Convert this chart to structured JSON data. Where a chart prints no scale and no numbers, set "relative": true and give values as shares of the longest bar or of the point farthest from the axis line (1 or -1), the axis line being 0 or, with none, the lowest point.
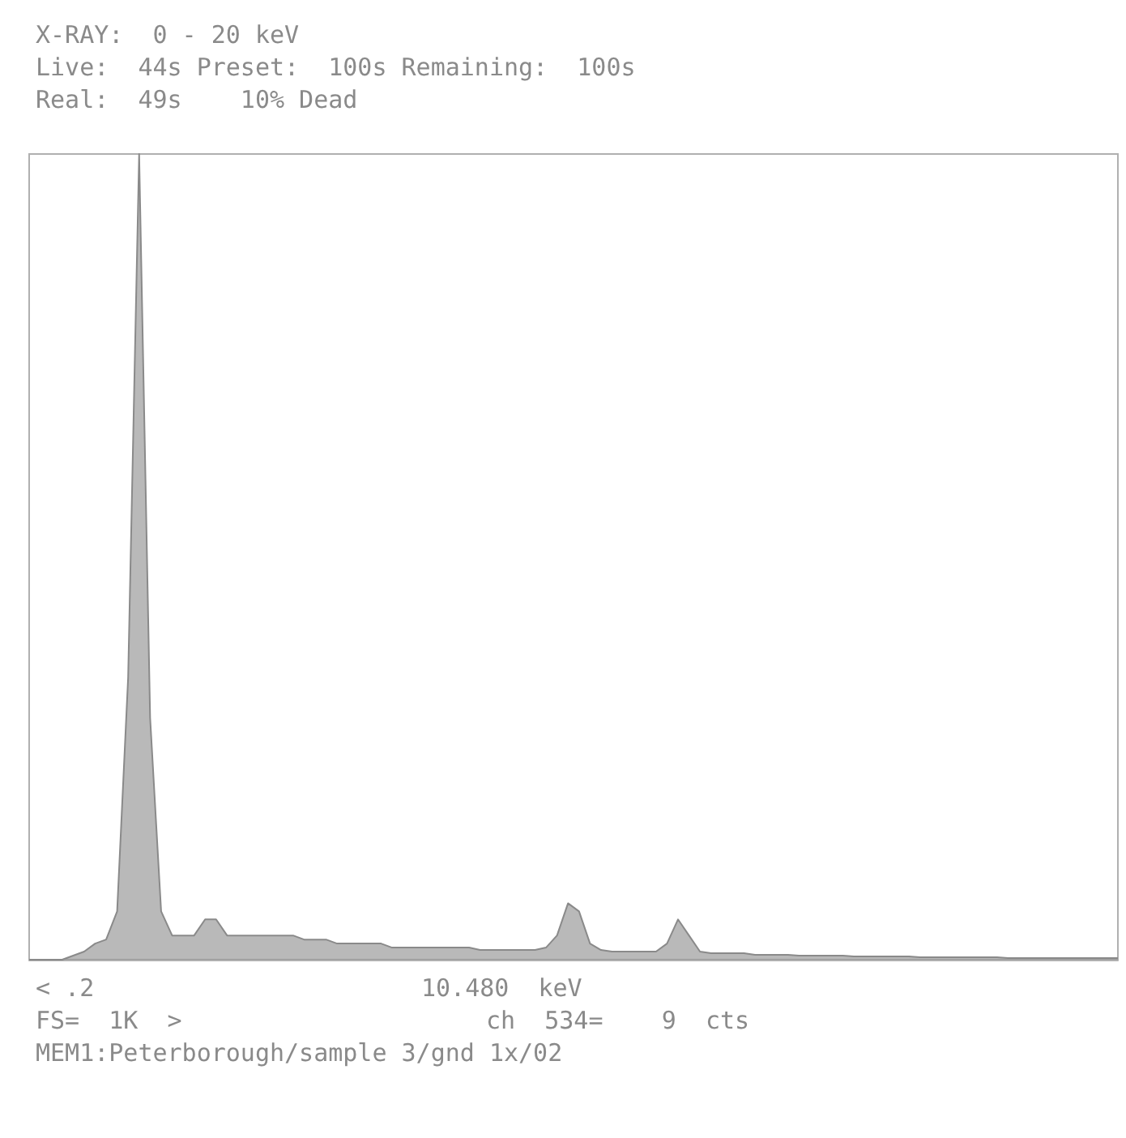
{
  "chart_data": {
    "type": "area",
    "relative": true,
    "color": "#8a8a8a",
    "categories": [
      null,
      null,
      null,
      null,
      null,
      null,
      null,
      null,
      null,
      null,
      null,
      null,
      null,
      null,
      null,
      null,
      null,
      null,
      null,
      null,
      null,
      null,
      null,
      null,
      null,
      null,
      null,
      null,
      null,
      null,
      null,
      null,
      null,
      null,
      null,
      null,
      null,
      null,
      null,
      null,
      null,
      null,
      null,
      null,
      null,
      null,
      null,
      null,
      null,
      null,
      null,
      null,
      null,
      null,
      null,
      null,
      null,
      null,
      null,
      null,
      null,
      null,
      null,
      null,
      null,
      null,
      null,
      null,
      null,
      null,
      null,
      null,
      null,
      null,
      null,
      null,
      null,
      null,
      null,
      null,
      null,
      null,
      null,
      null,
      null,
      null,
      null,
      null,
      null,
      null,
      null,
      null,
      null,
      null,
      null,
      null,
      null,
      null,
      null,
      null
    ],
    "values": [
      0,
      0,
      0,
      0,
      0.005,
      0.01,
      0.02,
      0.025,
      0.06,
      0.35,
      1,
      0.3,
      0.06,
      0.03,
      0.03,
      0.03,
      0.05,
      0.05,
      0.03,
      0.03,
      0.03,
      0.03,
      0.03,
      0.03,
      0.03,
      0.025,
      0.025,
      0.025,
      0.02,
      0.02,
      0.02,
      0.02,
      0.02,
      0.015,
      0.015,
      0.015,
      0.015,
      0.015,
      0.015,
      0.015,
      0.015,
      0.012,
      0.012,
      0.012,
      0.012,
      0.012,
      0.012,
      0.015,
      0.03,
      0.07,
      0.06,
      0.02,
      0.012,
      0.01,
      0.01,
      0.01,
      0.01,
      0.01,
      0.02,
      0.05,
      0.03,
      0.01,
      0.008,
      0.008,
      0.008,
      0.008,
      0.006,
      0.006,
      0.006,
      0.006,
      0.005,
      0.005,
      0.005,
      0.005,
      0.005,
      0.004,
      0.004,
      0.004,
      0.004,
      0.004,
      0.004,
      0.003,
      0.003,
      0.003,
      0.003,
      0.003,
      0.003,
      0.003,
      0.003,
      0.002,
      0.002,
      0.002,
      0.002,
      0.002,
      0.002,
      0.002,
      0.002,
      0.002,
      0.002,
      0.002
    ],
    "annotations": [
      "X-RAY:  0 - 20 keV",
      "Live:  44s Preset:  100s Remaining:  100s",
      "Real:  49s    10% Dead",
      "< .2",
      "10.480  keV",
      "FS=  1K  >",
      "ch  534=    9  cts",
      "MEM1:Peterborough/sample 3/gnd 1x/02"
    ]
  }
}
